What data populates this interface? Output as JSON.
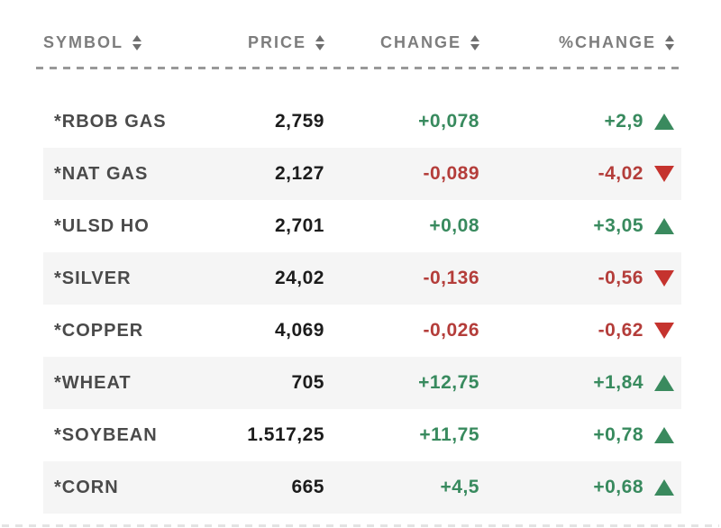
{
  "table": {
    "columns": [
      {
        "label": "SYMBOL",
        "sort_icon": "sort-arrows-icon"
      },
      {
        "label": "PRICE",
        "sort_icon": "sort-arrows-icon"
      },
      {
        "label": "CHANGE",
        "sort_icon": "sort-arrows-icon"
      },
      {
        "label": "%CHANGE",
        "sort_icon": "sort-arrows-icon"
      }
    ],
    "rows": [
      {
        "symbol": "*RBOB GAS",
        "price": "2,759",
        "change": "+0,078",
        "pct_change": "+2,9",
        "direction": "up"
      },
      {
        "symbol": "*NAT GAS",
        "price": "2,127",
        "change": "-0,089",
        "pct_change": "-4,02",
        "direction": "down"
      },
      {
        "symbol": "*ULSD HO",
        "price": "2,701",
        "change": "+0,08",
        "pct_change": "+3,05",
        "direction": "up"
      },
      {
        "symbol": "*SILVER",
        "price": "24,02",
        "change": "-0,136",
        "pct_change": "-0,56",
        "direction": "down"
      },
      {
        "symbol": "*COPPER",
        "price": "4,069",
        "change": "-0,026",
        "pct_change": "-0,62",
        "direction": "down"
      },
      {
        "symbol": "*WHEAT",
        "price": "705",
        "change": "+12,75",
        "pct_change": "+1,84",
        "direction": "up"
      },
      {
        "symbol": "*SOYBEAN",
        "price": "1.517,25",
        "change": "+11,75",
        "pct_change": "+0,78",
        "direction": "up"
      },
      {
        "symbol": "*CORN",
        "price": "665",
        "change": "+4,5",
        "pct_change": "+0,68",
        "direction": "up"
      }
    ]
  },
  "colors": {
    "up_text": "#388a5e",
    "down_text": "#b43d3a",
    "up_triangle": "#3a8a5e",
    "down_triangle": "#c5332e",
    "header_text": "#7d7d7d",
    "symbol_text": "#4a4a4a",
    "price_text": "#1c1c1c",
    "stripe_background": "#f5f5f5",
    "separator": "#999999"
  }
}
